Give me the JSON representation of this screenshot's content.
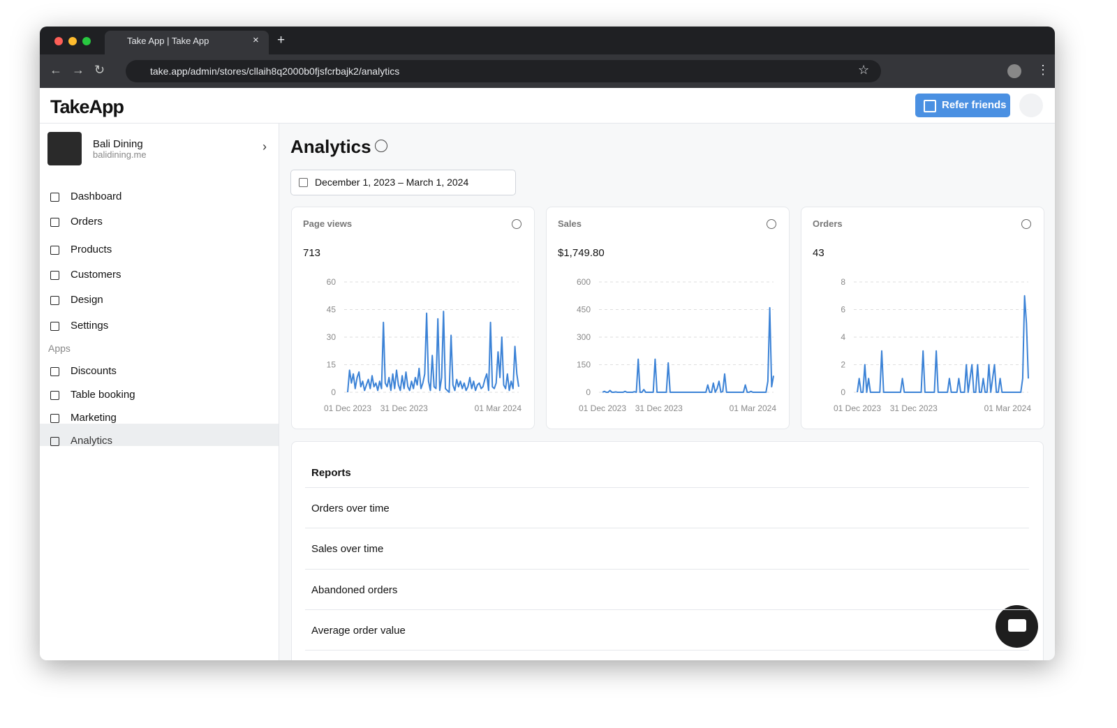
{
  "browser": {
    "tab_title": "Take App | Take App",
    "url": "take.app/admin/stores/cllaih8q2000b0fjsfcrbajk2/analytics"
  },
  "header": {
    "logo": "TakeApp",
    "refer_button": "Refer friends"
  },
  "store": {
    "name": "Bali Dining",
    "domain": "balidining.me"
  },
  "nav": [
    {
      "label": "Dashboard",
      "submenu": false
    },
    {
      "label": "Orders",
      "submenu": true
    },
    {
      "label": "Products",
      "submenu": true
    },
    {
      "label": "Customers",
      "submenu": false
    },
    {
      "label": "Design",
      "submenu": true
    },
    {
      "label": "Settings",
      "submenu": false
    }
  ],
  "apps": {
    "heading": "Apps",
    "items": [
      "Discounts",
      "Table booking",
      "Marketing",
      "Analytics"
    ],
    "active": 3
  },
  "page": {
    "title": "Analytics",
    "date_range": "December 1, 2023 – March 1, 2024"
  },
  "chart_data": [
    {
      "type": "line",
      "title": "Page views",
      "total": "713",
      "color": "#3b82d6",
      "grid": true,
      "ylim": [
        0,
        60
      ],
      "yticks": [
        0,
        15,
        30,
        45,
        60
      ],
      "categories": [
        "01 Dec 2023",
        null,
        null,
        null,
        null,
        null,
        null,
        null,
        null,
        null,
        null,
        null,
        null,
        null,
        null,
        null,
        null,
        null,
        null,
        null,
        null,
        null,
        null,
        null,
        null,
        null,
        null,
        null,
        null,
        null,
        "31 Dec 2023",
        null,
        null,
        null,
        null,
        null,
        null,
        null,
        null,
        null,
        null,
        null,
        null,
        null,
        null,
        null,
        null,
        null,
        null,
        null,
        null,
        null,
        null,
        null,
        null,
        null,
        null,
        null,
        null,
        null,
        null,
        null,
        null,
        null,
        null,
        null,
        null,
        null,
        null,
        null,
        null,
        null,
        null,
        null,
        null,
        null,
        null,
        null,
        null,
        null,
        null,
        null,
        null,
        null,
        null,
        null,
        null,
        null,
        null,
        null,
        null,
        "01 Mar 2024"
      ],
      "values": [
        0,
        12,
        5,
        10,
        2,
        8,
        11,
        3,
        6,
        1,
        4,
        7,
        2,
        9,
        3,
        5,
        1,
        6,
        2,
        38,
        5,
        3,
        8,
        1,
        10,
        2,
        12,
        4,
        1,
        9,
        2,
        11,
        3,
        1,
        6,
        2,
        8,
        4,
        13,
        2,
        5,
        10,
        43,
        6,
        1,
        20,
        3,
        2,
        40,
        1,
        8,
        44,
        2,
        1,
        0,
        31,
        4,
        1,
        7,
        3,
        6,
        2,
        5,
        1,
        3,
        8,
        2,
        6,
        1,
        4,
        5,
        2,
        3,
        7,
        10,
        1,
        38,
        3,
        2,
        5,
        22,
        8,
        30,
        4,
        2,
        10,
        1,
        6,
        2,
        25,
        10,
        3
      ]
    },
    {
      "type": "line",
      "title": "Sales",
      "total": "$1,749.80",
      "color": "#3b82d6",
      "grid": true,
      "ylim": [
        0,
        600
      ],
      "yticks": [
        0,
        150,
        300,
        450,
        600
      ],
      "categories": [
        "01 Dec 2023",
        null,
        null,
        null,
        null,
        null,
        null,
        null,
        null,
        null,
        null,
        null,
        null,
        null,
        null,
        null,
        null,
        null,
        null,
        null,
        null,
        null,
        null,
        null,
        null,
        null,
        null,
        null,
        null,
        null,
        "31 Dec 2023",
        null,
        null,
        null,
        null,
        null,
        null,
        null,
        null,
        null,
        null,
        null,
        null,
        null,
        null,
        null,
        null,
        null,
        null,
        null,
        null,
        null,
        null,
        null,
        null,
        null,
        null,
        null,
        null,
        null,
        null,
        null,
        null,
        null,
        null,
        null,
        null,
        null,
        null,
        null,
        null,
        null,
        null,
        null,
        null,
        null,
        null,
        null,
        null,
        null,
        null,
        null,
        null,
        null,
        null,
        null,
        null,
        null,
        null,
        null,
        null,
        "01 Mar 2024"
      ],
      "values": [
        0,
        5,
        0,
        0,
        10,
        0,
        0,
        2,
        0,
        0,
        0,
        0,
        5,
        0,
        0,
        0,
        0,
        3,
        0,
        180,
        0,
        0,
        15,
        0,
        0,
        0,
        0,
        0,
        180,
        0,
        0,
        0,
        0,
        0,
        0,
        160,
        0,
        0,
        0,
        0,
        0,
        0,
        0,
        0,
        0,
        0,
        0,
        0,
        0,
        0,
        0,
        0,
        0,
        0,
        0,
        0,
        40,
        0,
        0,
        50,
        0,
        20,
        60,
        0,
        5,
        100,
        0,
        0,
        0,
        0,
        0,
        0,
        0,
        0,
        0,
        0,
        40,
        0,
        0,
        5,
        0,
        0,
        0,
        0,
        0,
        0,
        0,
        0,
        60,
        460,
        30,
        90
      ]
    },
    {
      "type": "line",
      "title": "Orders",
      "total": "43",
      "color": "#3b82d6",
      "grid": true,
      "ylim": [
        0,
        8
      ],
      "yticks": [
        0,
        2,
        4,
        6,
        8
      ],
      "categories": [
        "01 Dec 2023",
        null,
        null,
        null,
        null,
        null,
        null,
        null,
        null,
        null,
        null,
        null,
        null,
        null,
        null,
        null,
        null,
        null,
        null,
        null,
        null,
        null,
        null,
        null,
        null,
        null,
        null,
        null,
        null,
        null,
        "31 Dec 2023",
        null,
        null,
        null,
        null,
        null,
        null,
        null,
        null,
        null,
        null,
        null,
        null,
        null,
        null,
        null,
        null,
        null,
        null,
        null,
        null,
        null,
        null,
        null,
        null,
        null,
        null,
        null,
        null,
        null,
        null,
        null,
        null,
        null,
        null,
        null,
        null,
        null,
        null,
        null,
        null,
        null,
        null,
        null,
        null,
        null,
        null,
        null,
        null,
        null,
        null,
        null,
        null,
        null,
        null,
        null,
        null,
        null,
        null,
        null,
        null,
        "01 Mar 2024"
      ],
      "values": [
        0,
        1,
        0,
        0,
        2,
        0,
        1,
        0,
        0,
        0,
        0,
        0,
        0,
        3,
        0,
        0,
        0,
        0,
        0,
        0,
        0,
        0,
        0,
        0,
        1,
        0,
        0,
        0,
        0,
        0,
        0,
        0,
        0,
        0,
        0,
        3,
        0,
        0,
        0,
        0,
        0,
        0,
        3,
        0,
        0,
        0,
        0,
        0,
        0,
        1,
        0,
        0,
        0,
        0,
        1,
        0,
        0,
        0,
        2,
        0,
        1,
        2,
        0,
        0,
        2,
        0,
        0,
        1,
        0,
        0,
        2,
        0,
        1,
        2,
        0,
        0,
        1,
        0,
        0,
        0,
        0,
        0,
        0,
        0,
        0,
        0,
        0,
        0,
        1,
        7,
        5,
        1
      ]
    }
  ],
  "reports": {
    "title": "Reports",
    "items": [
      "Orders over time",
      "Sales over time",
      "Abandoned orders",
      "Average order value"
    ]
  }
}
